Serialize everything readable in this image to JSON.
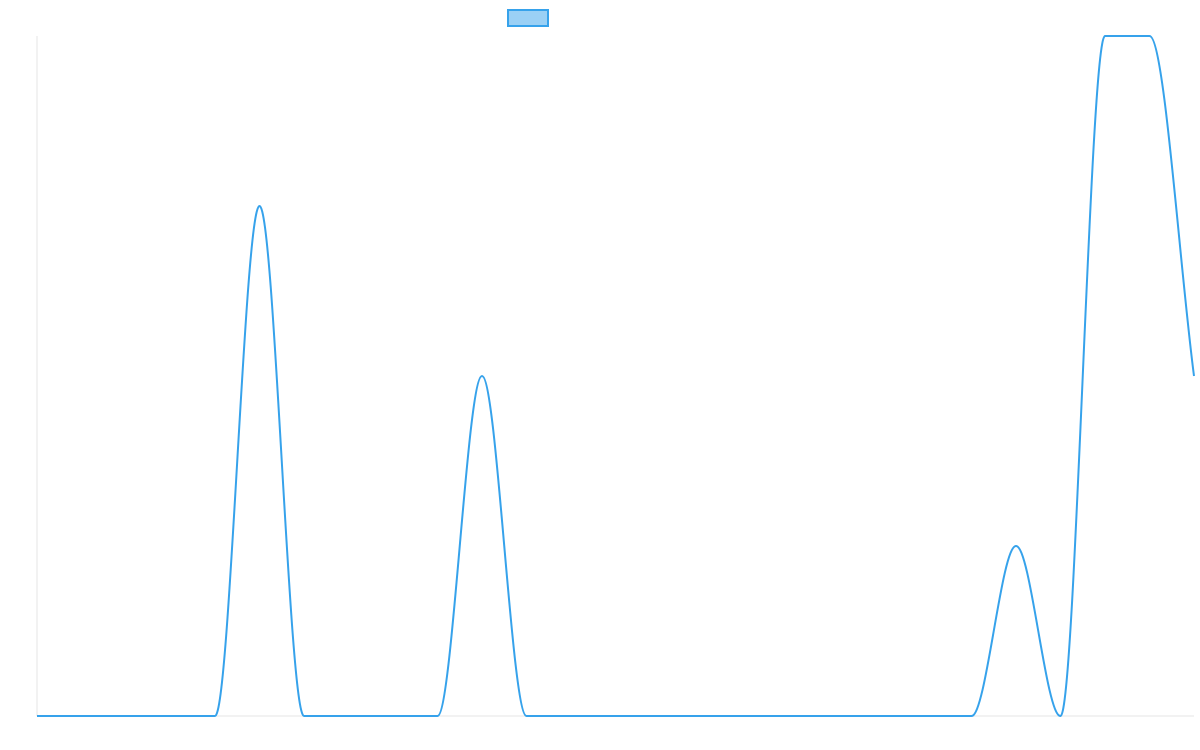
{
  "colors": {
    "series_line": "#36a2eb",
    "legend_fill": "#9ad0f5",
    "axis_line": "#e6e6e6",
    "background": "#ffffff"
  },
  "chart_data": {
    "type": "line",
    "title": "",
    "xlabel": "",
    "ylabel": "",
    "x_categories": 27,
    "ylim": [
      0,
      4
    ],
    "grid": false,
    "legend": {
      "placement": "top-center",
      "entries": [
        {
          "label": "",
          "marker": "filled-box"
        }
      ]
    },
    "series": [
      {
        "values": [
          0,
          0,
          0,
          0,
          0,
          3,
          0,
          0,
          0,
          0,
          2,
          0,
          0,
          0,
          0,
          0,
          0,
          0,
          0,
          0,
          0,
          0,
          1,
          0,
          4,
          4,
          2
        ]
      }
    ]
  }
}
